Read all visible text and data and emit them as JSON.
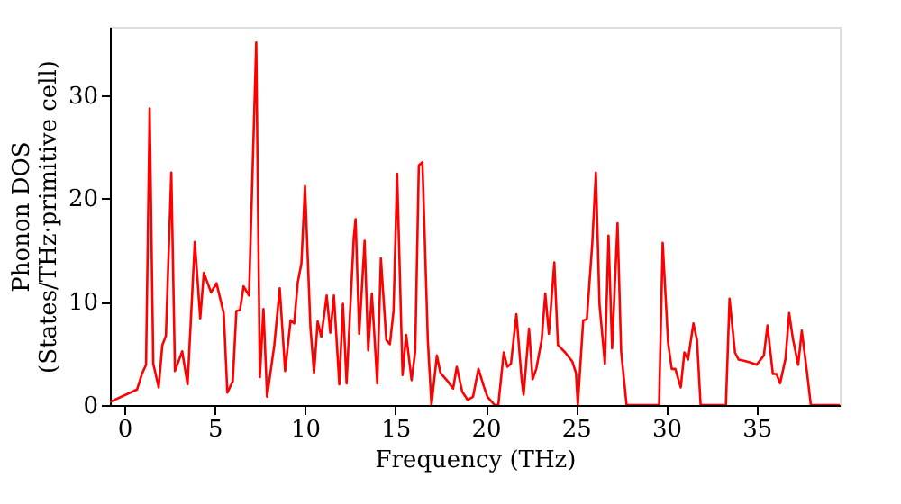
{
  "chart_data": {
    "type": "line",
    "xlabel": "Frequency (THz)",
    "ylabel": "Phonon DOS\n(States/THz·primitive cell)",
    "xlim": [
      -0.8,
      39.6
    ],
    "ylim": [
      0,
      36.6
    ],
    "xticks": [
      0,
      5,
      10,
      15,
      20,
      25,
      30,
      35
    ],
    "yticks": [
      0,
      10,
      20,
      30
    ],
    "grid": false,
    "marker": "none",
    "line_style": "solid",
    "x": [
      -0.8,
      0.7,
      0.97,
      1.2,
      1.4,
      1.6,
      1.9,
      2.1,
      2.3,
      2.6,
      2.8,
      3.2,
      3.5,
      3.9,
      4.2,
      4.4,
      4.8,
      5.1,
      5.5,
      5.7,
      6.0,
      6.2,
      6.4,
      6.6,
      6.9,
      7.3,
      7.5,
      7.7,
      7.9,
      8.3,
      8.6,
      8.9,
      9.2,
      9.4,
      9.6,
      9.8,
      10.0,
      10.3,
      10.5,
      10.7,
      10.9,
      11.2,
      11.4,
      11.6,
      11.9,
      12.1,
      12.3,
      12.7,
      12.8,
      13.0,
      13.3,
      13.5,
      13.7,
      14.0,
      14.2,
      14.5,
      14.7,
      14.9,
      15.1,
      15.4,
      15.6,
      15.9,
      16.1,
      16.3,
      16.5,
      16.8,
      17.0,
      17.3,
      17.5,
      17.9,
      18.2,
      18.4,
      18.7,
      19.0,
      19.3,
      19.6,
      19.9,
      20.1,
      20.5,
      20.7,
      21.0,
      21.2,
      21.4,
      21.7,
      22.0,
      22.1,
      22.4,
      22.6,
      22.8,
      23.1,
      23.3,
      23.5,
      23.8,
      24.0,
      24.4,
      24.8,
      25.0,
      25.1,
      25.4,
      25.6,
      25.9,
      26.1,
      26.3,
      26.6,
      26.8,
      27.0,
      27.3,
      27.5,
      27.8,
      29.6,
      29.8,
      30.1,
      30.3,
      30.5,
      30.8,
      31.0,
      31.2,
      31.5,
      31.7,
      31.9,
      33.3,
      33.5,
      33.8,
      34.0,
      34.3,
      34.7,
      35.0,
      35.4,
      35.6,
      35.9,
      36.1,
      36.3,
      36.6,
      36.8,
      37.0,
      37.3,
      37.5,
      37.8,
      38.0,
      39.6
    ],
    "series": [
      {
        "color": "#ff0000",
        "values": [
          0.3,
          1.5,
          3,
          3.9,
          28.7,
          4,
          1.7,
          5.8,
          6.7,
          22.5,
          3.3,
          5.2,
          2,
          15.8,
          8.4,
          12.8,
          10.9,
          11.8,
          8.9,
          1.2,
          2.3,
          9.1,
          9.2,
          11.5,
          10.6,
          35.1,
          2.7,
          9.3,
          0.8,
          5.8,
          11.3,
          3.3,
          8.2,
          7.9,
          11.9,
          13.7,
          21.2,
          7.5,
          3.1,
          8.1,
          6.6,
          10.6,
          7,
          10.6,
          2,
          9.8,
          2.1,
          16.2,
          18,
          6.9,
          15.9,
          5.3,
          10.8,
          2.1,
          14.2,
          6.3,
          5.9,
          9.1,
          22.4,
          2.9,
          6.8,
          2.4,
          5.2,
          23.2,
          23.5,
          6.2,
          0,
          4.8,
          3.1,
          2.3,
          1.6,
          3.7,
          1.3,
          0.5,
          0.8,
          3.5,
          1.8,
          0.8,
          0,
          0,
          5.1,
          3.7,
          4,
          8.8,
          2.3,
          1,
          7.4,
          2.5,
          3.5,
          6.3,
          10.8,
          6.9,
          13.8,
          5.8,
          5.1,
          4.2,
          3.1,
          0,
          8.2,
          8.3,
          15.6,
          22.5,
          9.8,
          4,
          16.4,
          5.5,
          17.6,
          5.2,
          0,
          0,
          15.7,
          6,
          3.5,
          3.5,
          1.7,
          5.1,
          4.4,
          7.9,
          6.3,
          0,
          0,
          10.3,
          5.1,
          4.4,
          4.3,
          4.1,
          3.9,
          4.8,
          7.7,
          3,
          3,
          2.1,
          4.5,
          8.9,
          6.5,
          3.9,
          7.2,
          3,
          0,
          0
        ]
      }
    ]
  }
}
